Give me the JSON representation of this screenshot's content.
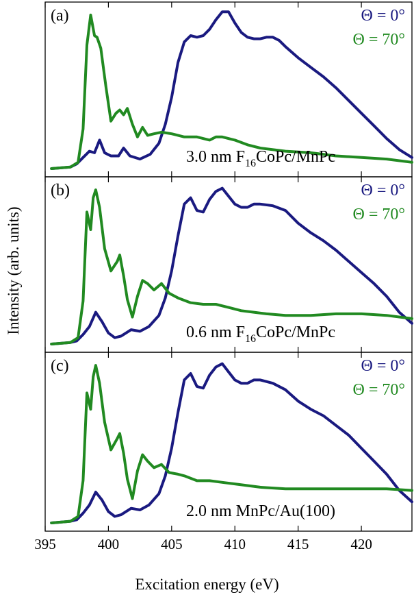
{
  "chart_data": {
    "type": "line",
    "xlabel": "Excitation energy (eV)",
    "ylabel": "Intensity (arb. units)",
    "xlim": [
      395,
      424
    ],
    "xticks": [
      395,
      400,
      405,
      410,
      415,
      420
    ],
    "ylim": [
      0,
      1
    ],
    "colors": {
      "theta0": "#1a1a80",
      "theta70": "#218a21",
      "axis": "#000000"
    },
    "panels": [
      {
        "label": "(a)",
        "sample_prefix": "3.0 nm F",
        "sample_sub": "16",
        "sample_suffix": "CoPc/MnPc",
        "series": [
          {
            "name": "Θ =  0°",
            "x": [
              395.5,
              397,
              397.5,
              398,
              398.5,
              398.9,
              399.3,
              399.7,
              400.2,
              400.8,
              401.2,
              401.7,
              402.5,
              403.3,
              404,
              404.5,
              405,
              405.5,
              406,
              406.5,
              407,
              407.5,
              408,
              408.5,
              409,
              409.5,
              410,
              410.5,
              411,
              411.5,
              412,
              412.5,
              413,
              413.5,
              414,
              415,
              416,
              417,
              418,
              419,
              420,
              421,
              422,
              423,
              424
            ],
            "y": [
              0.0,
              0.01,
              0.03,
              0.07,
              0.11,
              0.1,
              0.18,
              0.1,
              0.08,
              0.08,
              0.13,
              0.08,
              0.06,
              0.09,
              0.16,
              0.28,
              0.45,
              0.67,
              0.8,
              0.84,
              0.83,
              0.84,
              0.88,
              0.94,
              0.99,
              0.99,
              0.92,
              0.86,
              0.83,
              0.82,
              0.82,
              0.83,
              0.83,
              0.81,
              0.77,
              0.7,
              0.64,
              0.58,
              0.51,
              0.43,
              0.35,
              0.27,
              0.19,
              0.12,
              0.07
            ]
          },
          {
            "name": "Θ = 70°",
            "x": [
              395.5,
              397,
              397.6,
              398,
              398.3,
              398.6,
              398.9,
              399.1,
              399.4,
              399.8,
              400.2,
              400.6,
              400.9,
              401.2,
              401.5,
              401.9,
              402.3,
              402.7,
              403.1,
              403.6,
              404.2,
              405,
              406,
              407,
              408,
              408.5,
              409,
              410,
              411,
              412,
              414,
              416,
              418,
              420,
              422,
              424
            ],
            "y": [
              0.0,
              0.01,
              0.04,
              0.25,
              0.78,
              0.97,
              0.84,
              0.83,
              0.76,
              0.52,
              0.3,
              0.35,
              0.37,
              0.34,
              0.38,
              0.28,
              0.2,
              0.26,
              0.21,
              0.22,
              0.23,
              0.22,
              0.2,
              0.2,
              0.18,
              0.2,
              0.2,
              0.18,
              0.15,
              0.13,
              0.11,
              0.1,
              0.08,
              0.07,
              0.06,
              0.04
            ]
          }
        ]
      },
      {
        "label": "(b)",
        "sample_prefix": "0.6 nm F",
        "sample_sub": "16",
        "sample_suffix": "CoPc/MnPc",
        "series": [
          {
            "name": "Θ =  0°",
            "x": [
              395.5,
              397,
              397.5,
              398,
              398.5,
              399,
              399.5,
              400,
              400.5,
              401,
              401.8,
              402.5,
              403.2,
              404,
              404.5,
              405,
              405.5,
              406,
              406.5,
              407,
              407.5,
              408,
              408.5,
              409,
              409.5,
              410,
              410.5,
              411,
              411.5,
              412,
              413,
              414,
              415,
              416,
              417,
              418,
              419,
              420,
              421,
              422,
              423,
              424
            ],
            "y": [
              0.0,
              0.01,
              0.02,
              0.06,
              0.11,
              0.2,
              0.14,
              0.07,
              0.04,
              0.05,
              0.09,
              0.08,
              0.11,
              0.18,
              0.29,
              0.46,
              0.68,
              0.88,
              0.92,
              0.84,
              0.83,
              0.91,
              0.96,
              0.98,
              0.93,
              0.88,
              0.86,
              0.86,
              0.88,
              0.88,
              0.87,
              0.84,
              0.76,
              0.7,
              0.65,
              0.59,
              0.52,
              0.45,
              0.38,
              0.3,
              0.2,
              0.13
            ]
          },
          {
            "name": "Θ = 70°",
            "x": [
              395.5,
              397,
              397.6,
              398,
              398.3,
              398.6,
              398.8,
              399,
              399.3,
              399.7,
              400.2,
              400.7,
              400.9,
              401.2,
              401.5,
              401.9,
              402.3,
              402.7,
              403.1,
              403.6,
              404.2,
              404.8,
              405.5,
              406.5,
              407.5,
              408.5,
              409.5,
              410.5,
              411.5,
              412.5,
              414,
              416,
              418,
              420,
              422,
              424
            ],
            "y": [
              0.0,
              0.01,
              0.04,
              0.27,
              0.83,
              0.72,
              0.92,
              0.97,
              0.86,
              0.6,
              0.46,
              0.52,
              0.56,
              0.43,
              0.28,
              0.17,
              0.3,
              0.4,
              0.38,
              0.34,
              0.38,
              0.32,
              0.29,
              0.26,
              0.25,
              0.25,
              0.23,
              0.21,
              0.2,
              0.19,
              0.18,
              0.18,
              0.19,
              0.19,
              0.18,
              0.16
            ]
          }
        ]
      },
      {
        "label": "(c)",
        "sample_prefix": "2.0 nm MnPc/Au(100)",
        "sample_sub": "",
        "sample_suffix": "",
        "series": [
          {
            "name": "Θ =  0°",
            "x": [
              395.5,
              397,
              397.5,
              398,
              398.5,
              399,
              399.5,
              400,
              400.5,
              401,
              401.8,
              402.5,
              403.2,
              404,
              404.5,
              405,
              405.5,
              406,
              406.5,
              407,
              407.5,
              408,
              408.5,
              409,
              409.5,
              410,
              410.5,
              411,
              411.5,
              412,
              413,
              414,
              415,
              416,
              417,
              418,
              419,
              420,
              421,
              422,
              423,
              424
            ],
            "y": [
              0.0,
              0.01,
              0.02,
              0.06,
              0.11,
              0.19,
              0.14,
              0.07,
              0.04,
              0.05,
              0.09,
              0.08,
              0.11,
              0.18,
              0.29,
              0.46,
              0.68,
              0.88,
              0.92,
              0.84,
              0.83,
              0.91,
              0.96,
              0.98,
              0.93,
              0.88,
              0.86,
              0.86,
              0.88,
              0.88,
              0.86,
              0.82,
              0.75,
              0.7,
              0.66,
              0.6,
              0.54,
              0.46,
              0.38,
              0.3,
              0.2,
              0.13
            ]
          },
          {
            "name": "Θ = 70°",
            "x": [
              395.5,
              397,
              397.6,
              398,
              398.3,
              398.6,
              398.8,
              399,
              399.3,
              399.7,
              400.2,
              400.7,
              400.9,
              401.2,
              401.5,
              401.9,
              402.3,
              402.7,
              403.1,
              403.6,
              404.2,
              404.8,
              405.5,
              406,
              407,
              408,
              409,
              410,
              411,
              412,
              414,
              416,
              418,
              420,
              422,
              424
            ],
            "y": [
              0.0,
              0.01,
              0.04,
              0.26,
              0.8,
              0.7,
              0.9,
              0.97,
              0.86,
              0.62,
              0.45,
              0.52,
              0.55,
              0.43,
              0.27,
              0.15,
              0.32,
              0.42,
              0.38,
              0.34,
              0.36,
              0.31,
              0.3,
              0.29,
              0.26,
              0.26,
              0.25,
              0.24,
              0.23,
              0.22,
              0.21,
              0.21,
              0.21,
              0.21,
              0.21,
              0.2
            ]
          }
        ]
      }
    ]
  }
}
